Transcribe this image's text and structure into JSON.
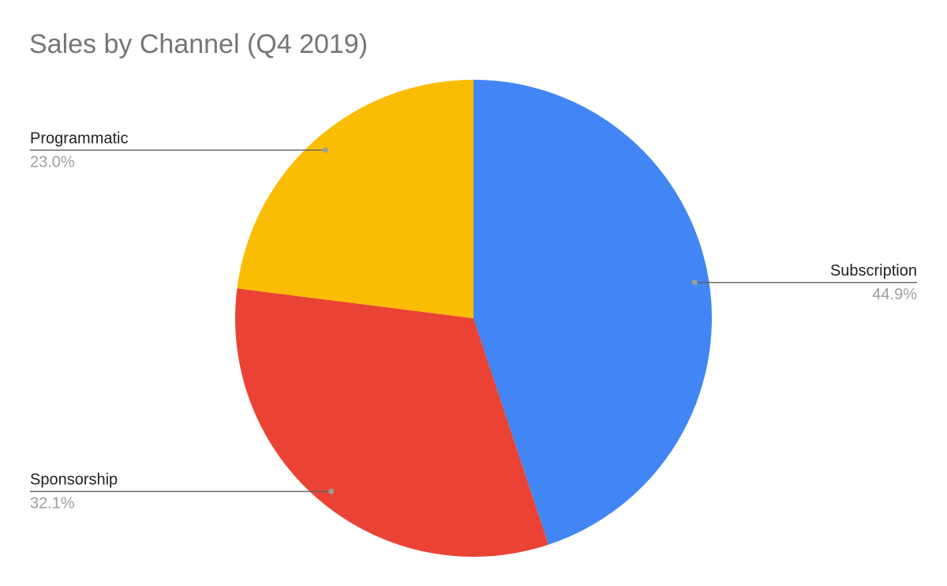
{
  "chart_data": {
    "type": "pie",
    "title": "Sales by Channel (Q4 2019)",
    "categories": [
      "Subscription",
      "Sponsorship",
      "Programmatic"
    ],
    "values": [
      44.9,
      32.1,
      23.0
    ],
    "value_labels": [
      "44.9%",
      "32.1%",
      "23.0%"
    ],
    "colors": [
      "#4285f4",
      "#ea4335",
      "#fbbc04"
    ]
  }
}
